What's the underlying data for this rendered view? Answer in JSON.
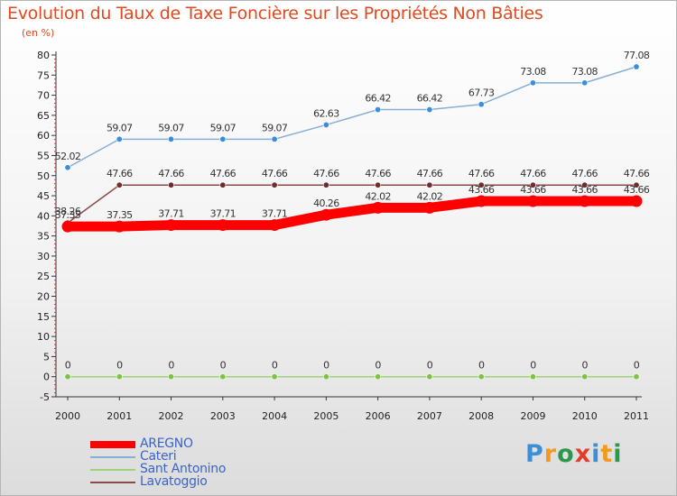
{
  "header": {
    "title": "Evolution du Taux de Taxe Foncière sur les Propriétés Non Bâties",
    "subtitle": "(en %)"
  },
  "logo": {
    "text": "Proxiti",
    "colors": [
      "#3b8fd8",
      "#f29a1d",
      "#2a9a4a",
      "#e23c2b",
      "#3b8fd8",
      "#f29a1d",
      "#2a9a4a"
    ]
  },
  "chart_data": {
    "type": "line",
    "x": [
      "2000",
      "2001",
      "2002",
      "2003",
      "2004",
      "2005",
      "2006",
      "2007",
      "2008",
      "2009",
      "2010",
      "2011"
    ],
    "ylim": [
      -5,
      80
    ],
    "yticks": [
      -5,
      0,
      5,
      10,
      15,
      20,
      25,
      30,
      35,
      40,
      45,
      50,
      55,
      60,
      65,
      70,
      75,
      80
    ],
    "grid": false,
    "legend_position": "bottom-left",
    "series": [
      {
        "name": "AREGNO",
        "color": "#ff0000",
        "marker_color": "#ff0000",
        "values": [
          37.35,
          37.35,
          37.71,
          37.71,
          37.71,
          40.26,
          42.02,
          42.02,
          43.66,
          43.66,
          43.66,
          43.66
        ],
        "labels": [
          "37.35",
          "37.35",
          "37.71",
          "37.71",
          "37.71",
          "40.26",
          "42.02",
          "42.02",
          "43.66",
          "43.66",
          "43.66",
          "43.66"
        ]
      },
      {
        "name": "Cateri",
        "color": "#86aed6",
        "marker_color": "#3b8fd8",
        "values": [
          52.02,
          59.07,
          59.07,
          59.07,
          59.07,
          62.63,
          66.42,
          66.42,
          67.73,
          73.08,
          73.08,
          77.08
        ],
        "labels": [
          "52.02",
          "59.07",
          "59.07",
          "59.07",
          "59.07",
          "62.63",
          "66.42",
          "66.42",
          "67.73",
          "73.08",
          "73.08",
          "77.08"
        ]
      },
      {
        "name": "Sant Antonino",
        "color": "#9fd37a",
        "marker_color": "#7cc342",
        "values": [
          0,
          0,
          0,
          0,
          0,
          0,
          0,
          0,
          0,
          0,
          0,
          0
        ],
        "labels": [
          "0",
          "0",
          "0",
          "0",
          "0",
          "0",
          "0",
          "0",
          "0",
          "0",
          "0",
          "0"
        ]
      },
      {
        "name": "Lavatoggio",
        "color": "#8a4a4a",
        "marker_color": "#6e2e2e",
        "values": [
          38.26,
          47.66,
          47.66,
          47.66,
          47.66,
          47.66,
          47.66,
          47.66,
          47.66,
          47.66,
          47.66,
          47.66
        ],
        "labels": [
          "38.26",
          "47.66",
          "47.66",
          "47.66",
          "47.66",
          "47.66",
          "47.66",
          "47.66",
          "47.66",
          "47.66",
          "47.66",
          "47.66"
        ]
      }
    ]
  }
}
